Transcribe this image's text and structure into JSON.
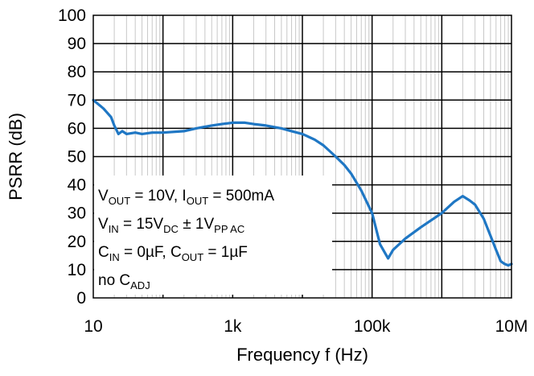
{
  "chart_data": {
    "type": "line",
    "title": "",
    "xlabel": "Frequency f (Hz)",
    "ylabel": "PSRR (dB)",
    "x_scale": "log",
    "xlim": [
      10,
      10000000
    ],
    "ylim": [
      0,
      100
    ],
    "x_ticks": [
      {
        "value": 10,
        "label": "10"
      },
      {
        "value": 1000,
        "label": "1k"
      },
      {
        "value": 100000,
        "label": "100k"
      },
      {
        "value": 10000000,
        "label": "10M"
      }
    ],
    "y_ticks": [
      0,
      10,
      20,
      30,
      40,
      50,
      60,
      70,
      80,
      90,
      100
    ],
    "grid": true,
    "line_color": "#1f77c4",
    "series": [
      {
        "x": [
          10,
          14,
          18,
          20,
          23,
          26,
          30,
          40,
          50,
          70,
          100,
          200,
          300,
          500,
          700,
          1000,
          1500,
          2000,
          3000,
          5000,
          7000,
          10000,
          15000,
          20000,
          30000,
          40000,
          50000,
          70000,
          100000,
          130000,
          170000,
          200000,
          300000,
          500000,
          1000000,
          1500000,
          2000000,
          2500000,
          3000000,
          4000000,
          5000000,
          6000000,
          7000000,
          8000000,
          9000000,
          10000000
        ],
        "y": [
          70,
          67,
          64,
          61,
          58,
          59,
          58,
          58.5,
          58,
          58.5,
          58.5,
          59,
          60,
          61,
          61.5,
          62,
          62,
          61.5,
          61,
          60,
          59,
          58,
          56,
          54,
          50,
          47,
          44,
          38,
          30,
          19,
          14,
          17,
          21,
          25,
          30,
          34,
          36,
          34.5,
          33,
          28,
          22,
          17,
          13,
          12,
          11.5,
          12
        ]
      }
    ],
    "annotations": [
      {
        "parts": [
          [
            "V",
            ""
          ],
          [
            "OUT",
            "sub"
          ],
          [
            " = 10V, I",
            ""
          ],
          [
            "OUT",
            "sub"
          ],
          [
            " = 500mA",
            ""
          ]
        ]
      },
      {
        "parts": [
          [
            "V",
            ""
          ],
          [
            "IN",
            "sub"
          ],
          [
            " = 15V",
            ""
          ],
          [
            "DC",
            "sub"
          ],
          [
            " ± 1V",
            ""
          ],
          [
            "PP AC",
            "sub"
          ]
        ]
      },
      {
        "parts": [
          [
            "C",
            ""
          ],
          [
            "IN",
            "sub"
          ],
          [
            " = 0µF, C",
            ""
          ],
          [
            "OUT",
            "sub"
          ],
          [
            " = 1µF",
            ""
          ]
        ]
      },
      {
        "parts": [
          [
            "no C",
            ""
          ],
          [
            "ADJ",
            "sub"
          ]
        ]
      }
    ]
  }
}
